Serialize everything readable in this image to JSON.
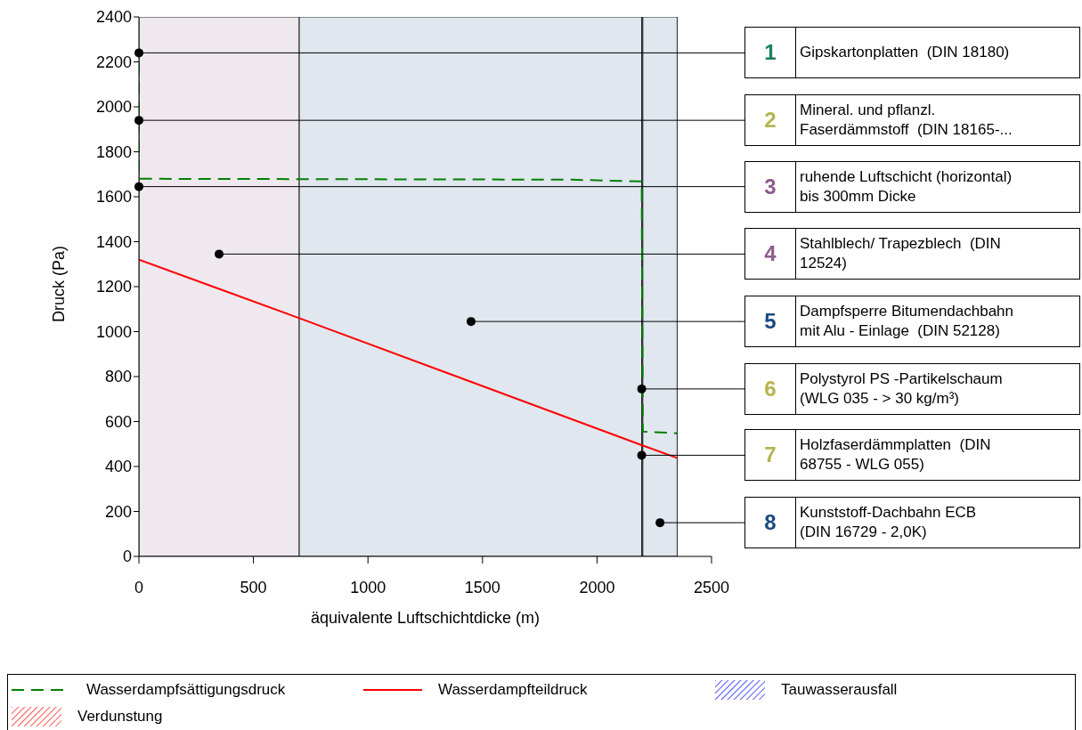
{
  "chart_data": {
    "type": "line",
    "xlabel": "äquivalente Luftschichtdicke (m)",
    "ylabel": "Druck (Pa)",
    "xlim": [
      0,
      2500
    ],
    "xticks": [
      0,
      500,
      1000,
      1500,
      2000,
      2500
    ],
    "ylim": [
      0,
      2400
    ],
    "yticks": [
      0,
      200,
      400,
      600,
      800,
      1000,
      1200,
      1400,
      1600,
      1800,
      2000,
      2200,
      2400
    ],
    "grid": false,
    "legend": "bottom",
    "series": [
      {
        "name": "Wasserdampfsättigungsdruck",
        "line_style": "dashed",
        "color": "#008000",
        "x": [
          0,
          0,
          1890,
          2195,
          2200,
          2350
        ],
        "values": [
          2200,
          1680,
          1676,
          1668,
          555,
          548
        ]
      },
      {
        "name": "Wasserdampfteildruck",
        "line_style": "solid",
        "color": "#ff0000",
        "x": [
          0,
          700,
          2195,
          2350
        ],
        "values": [
          1320,
          1060,
          495,
          438
        ]
      },
      {
        "name": "Tauwasserausfall",
        "type": "area",
        "color": "#0000ff"
      },
      {
        "name": "Verdunstung",
        "type": "area",
        "color": "#ff0000"
      }
    ],
    "bands": [
      {
        "axis": "x",
        "from": 0,
        "to": 700,
        "color": "#efe8ef"
      },
      {
        "axis": "x",
        "from": 700,
        "to": 2195,
        "color": "#e0e7ef"
      },
      {
        "axis": "x",
        "from": 2195,
        "to": 2200,
        "color": "#e0e7ef"
      },
      {
        "axis": "x",
        "from": 2200,
        "to": 2350,
        "color": "#e0e7ef"
      }
    ],
    "annotations": [
      {
        "text": "1 Gipskartonplatten  (DIN 18180)",
        "x": 0,
        "y": 2240
      },
      {
        "text": "2 Mineral. und pflanzl.\nFaserdämmstoff  (DIN 18165-...",
        "x": 0,
        "y": 1940
      },
      {
        "text": "3 ruhende Luftschicht (horizontal)\nbis 300mm Dicke",
        "x": 0,
        "y": 1645
      },
      {
        "text": "4 Stahlblech/ Trapezblech  (DIN\n12524)",
        "x": 350,
        "y": 1345
      },
      {
        "text": "5 Dampfsperre Bitumendachbahn\nmit Alu - Einlage  (DIN 52128)",
        "x": 1450,
        "y": 1045
      },
      {
        "text": "6 Polystyrol PS -Partikelschaum\n(WLG 035 - > 30 kg/m³)",
        "x": 2195,
        "y": 745
      },
      {
        "text": "7 Holzfaserdämmplatten  (DIN\n68755 - WLG 055)",
        "x": 2195,
        "y": 450
      },
      {
        "text": "8 Kunststoff-Dachbahn ECB\n(DIN 16729 - 2,0K)",
        "x": 2275,
        "y": 150
      }
    ]
  }
}
